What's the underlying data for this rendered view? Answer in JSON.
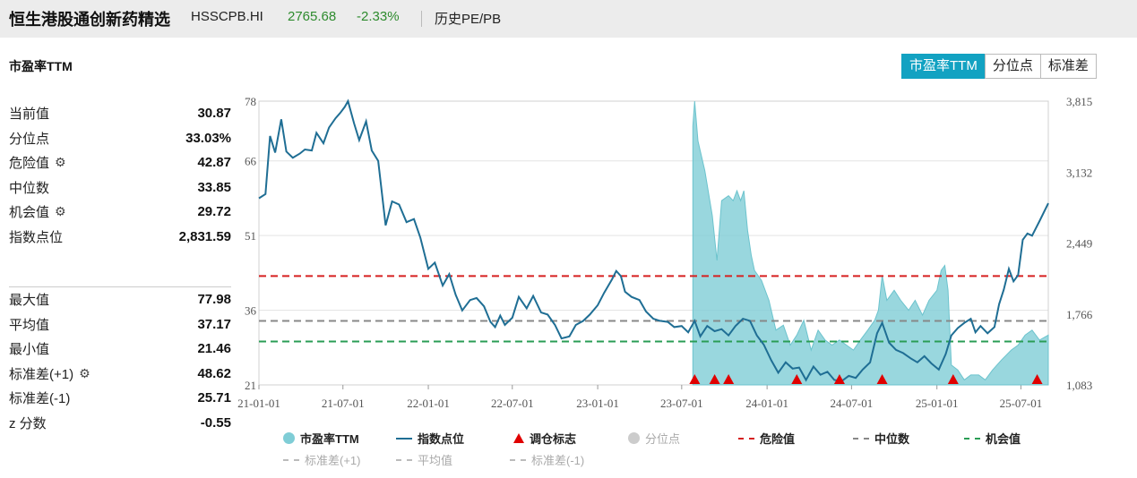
{
  "header": {
    "title": "恒生港股通创新药精选",
    "code": "HSSCPB.HI",
    "price": "2765.68",
    "change": "-2.33%",
    "history_link": "历史PE/PB"
  },
  "subtitle": "市盈率TTM",
  "tabs": [
    {
      "label": "市盈率TTM",
      "active": true
    },
    {
      "label": "分位点",
      "active": false
    },
    {
      "label": "标准差",
      "active": false
    }
  ],
  "stats_top": [
    {
      "label": "当前值",
      "value": "30.87",
      "gear": false
    },
    {
      "label": "分位点",
      "value": "33.03%",
      "gear": false
    },
    {
      "label": "危险值",
      "value": "42.87",
      "gear": true
    },
    {
      "label": "中位数",
      "value": "33.85",
      "gear": false
    },
    {
      "label": "机会值",
      "value": "29.72",
      "gear": true
    },
    {
      "label": "指数点位",
      "value": "2,831.59",
      "gear": false
    }
  ],
  "stats_bottom": [
    {
      "label": "最大值",
      "value": "77.98",
      "gear": false
    },
    {
      "label": "平均值",
      "value": "37.17",
      "gear": false
    },
    {
      "label": "最小值",
      "value": "21.46",
      "gear": false
    },
    {
      "label": "标准差(+1)",
      "value": "48.62",
      "gear": true
    },
    {
      "label": "标准差(-1)",
      "value": "25.71",
      "gear": false
    },
    {
      "label": "z 分数",
      "value": "-0.55",
      "gear": false
    }
  ],
  "legend": [
    {
      "label": "市盈率TTM",
      "kind": "dot",
      "color": "#7fcdd6",
      "active": true
    },
    {
      "label": "指数点位",
      "kind": "line",
      "color": "#1f6e94",
      "active": true
    },
    {
      "label": "调仓标志",
      "kind": "triangle",
      "color": "#e00000",
      "active": true
    },
    {
      "label": "分位点",
      "kind": "dot",
      "color": "#cccccc",
      "active": false
    },
    {
      "label": "危险值",
      "kind": "dash",
      "color": "#d62020",
      "active": true
    },
    {
      "label": "中位数",
      "kind": "dash",
      "color": "#888888",
      "active": true
    },
    {
      "label": "机会值",
      "kind": "dash",
      "color": "#2a9d55",
      "active": true
    },
    {
      "label": "标准差(+1)",
      "kind": "dash",
      "color": "#bbbbbb",
      "active": false
    },
    {
      "label": "平均值",
      "kind": "dash",
      "color": "#bbbbbb",
      "active": false
    },
    {
      "label": "标准差(-1)",
      "kind": "dash",
      "color": "#bbbbbb",
      "active": false
    }
  ],
  "chart_data": {
    "type": "line",
    "x_ticks": [
      "21-01-01",
      "21-07-01",
      "22-01-01",
      "22-07-01",
      "23-01-01",
      "23-07-01",
      "24-01-01",
      "24-07-01",
      "25-01-01",
      "25-07-01"
    ],
    "x_range": [
      "2021-01-01",
      "2025-08-29"
    ],
    "y_left_ticks": [
      "78",
      "66",
      "51",
      "36",
      "21"
    ],
    "y_left_range": [
      21,
      78
    ],
    "y_right_ticks": [
      "3,815",
      "3,132",
      "2,449",
      "1,766",
      "1,083"
    ],
    "y_right_range": [
      1083,
      3815
    ],
    "reference_lines": [
      {
        "name": "危险值",
        "value": 42.87,
        "color": "#d62020"
      },
      {
        "name": "中位数",
        "value": 33.85,
        "color": "#888888"
      },
      {
        "name": "机会值",
        "value": 29.72,
        "color": "#2a9d55"
      }
    ],
    "pe_ttm": {
      "color": "#7fcdd6",
      "points": [
        [
          "2023-07-25",
          73
        ],
        [
          "2023-07-29",
          78
        ],
        [
          "2023-08-05",
          70
        ],
        [
          "2023-08-20",
          64
        ],
        [
          "2023-09-05",
          55
        ],
        [
          "2023-09-15",
          46
        ],
        [
          "2023-09-25",
          58
        ],
        [
          "2023-10-10",
          59
        ],
        [
          "2023-10-20",
          58
        ],
        [
          "2023-10-28",
          60
        ],
        [
          "2023-11-05",
          58
        ],
        [
          "2023-11-12",
          60
        ],
        [
          "2023-11-20",
          52
        ],
        [
          "2023-11-28",
          47
        ],
        [
          "2023-12-05",
          44
        ],
        [
          "2023-12-20",
          42
        ],
        [
          "2024-01-05",
          38
        ],
        [
          "2024-01-20",
          32
        ],
        [
          "2024-02-05",
          33
        ],
        [
          "2024-02-20",
          29
        ],
        [
          "2024-03-05",
          31
        ],
        [
          "2024-03-20",
          34
        ],
        [
          "2024-04-05",
          28
        ],
        [
          "2024-04-20",
          32
        ],
        [
          "2024-05-05",
          30
        ],
        [
          "2024-05-20",
          29
        ],
        [
          "2024-06-05",
          30
        ],
        [
          "2024-06-20",
          29
        ],
        [
          "2024-07-05",
          28
        ],
        [
          "2024-07-20",
          30
        ],
        [
          "2024-08-05",
          32
        ],
        [
          "2024-08-20",
          34
        ],
        [
          "2024-08-28",
          36
        ],
        [
          "2024-09-05",
          43
        ],
        [
          "2024-09-15",
          38
        ],
        [
          "2024-10-01",
          40
        ],
        [
          "2024-10-15",
          38
        ],
        [
          "2024-11-01",
          36
        ],
        [
          "2024-11-15",
          38
        ],
        [
          "2024-12-01",
          35
        ],
        [
          "2024-12-15",
          38
        ],
        [
          "2025-01-01",
          40
        ],
        [
          "2025-01-10",
          44
        ],
        [
          "2025-01-18",
          45
        ],
        [
          "2025-01-25",
          40
        ],
        [
          "2025-02-01",
          25
        ],
        [
          "2025-02-15",
          24
        ],
        [
          "2025-03-01",
          22
        ],
        [
          "2025-03-15",
          23
        ],
        [
          "2025-04-01",
          23
        ],
        [
          "2025-04-15",
          22
        ],
        [
          "2025-05-01",
          24
        ],
        [
          "2025-05-20",
          26
        ],
        [
          "2025-06-10",
          28
        ],
        [
          "2025-06-25",
          29
        ],
        [
          "2025-07-10",
          31
        ],
        [
          "2025-07-25",
          32
        ],
        [
          "2025-08-10",
          30
        ],
        [
          "2025-08-29",
          31
        ]
      ]
    },
    "index_level": {
      "color": "#1f6e94",
      "points": [
        [
          "2021-01-01",
          2880
        ],
        [
          "2021-01-15",
          2920
        ],
        [
          "2021-01-25",
          3480
        ],
        [
          "2021-02-05",
          3320
        ],
        [
          "2021-02-18",
          3640
        ],
        [
          "2021-03-01",
          3330
        ],
        [
          "2021-03-15",
          3270
        ],
        [
          "2021-03-30",
          3310
        ],
        [
          "2021-04-10",
          3350
        ],
        [
          "2021-04-25",
          3340
        ],
        [
          "2021-05-05",
          3510
        ],
        [
          "2021-05-20",
          3410
        ],
        [
          "2021-06-01",
          3560
        ],
        [
          "2021-06-15",
          3650
        ],
        [
          "2021-06-25",
          3700
        ],
        [
          "2021-07-05",
          3760
        ],
        [
          "2021-07-12",
          3815
        ],
        [
          "2021-07-25",
          3600
        ],
        [
          "2021-08-05",
          3440
        ],
        [
          "2021-08-20",
          3620
        ],
        [
          "2021-09-01",
          3340
        ],
        [
          "2021-09-15",
          3240
        ],
        [
          "2021-10-01",
          2620
        ],
        [
          "2021-10-15",
          2850
        ],
        [
          "2021-10-30",
          2820
        ],
        [
          "2021-11-15",
          2650
        ],
        [
          "2021-12-01",
          2680
        ],
        [
          "2021-12-15",
          2500
        ],
        [
          "2022-01-01",
          2200
        ],
        [
          "2022-01-15",
          2260
        ],
        [
          "2022-02-01",
          2040
        ],
        [
          "2022-02-15",
          2150
        ],
        [
          "2022-03-01",
          1950
        ],
        [
          "2022-03-15",
          1800
        ],
        [
          "2022-04-01",
          1900
        ],
        [
          "2022-04-15",
          1920
        ],
        [
          "2022-05-01",
          1840
        ],
        [
          "2022-05-15",
          1690
        ],
        [
          "2022-05-25",
          1640
        ],
        [
          "2022-06-05",
          1750
        ],
        [
          "2022-06-15",
          1660
        ],
        [
          "2022-07-01",
          1730
        ],
        [
          "2022-07-15",
          1930
        ],
        [
          "2022-08-01",
          1820
        ],
        [
          "2022-08-15",
          1940
        ],
        [
          "2022-09-01",
          1780
        ],
        [
          "2022-09-15",
          1760
        ],
        [
          "2022-10-01",
          1660
        ],
        [
          "2022-10-15",
          1530
        ],
        [
          "2022-11-01",
          1550
        ],
        [
          "2022-11-15",
          1660
        ],
        [
          "2022-12-01",
          1700
        ],
        [
          "2022-12-15",
          1760
        ],
        [
          "2023-01-01",
          1850
        ],
        [
          "2023-01-15",
          1970
        ],
        [
          "2023-02-01",
          2100
        ],
        [
          "2023-02-10",
          2180
        ],
        [
          "2023-02-20",
          2130
        ],
        [
          "2023-03-01",
          1980
        ],
        [
          "2023-03-15",
          1930
        ],
        [
          "2023-04-01",
          1900
        ],
        [
          "2023-04-15",
          1790
        ],
        [
          "2023-05-01",
          1720
        ],
        [
          "2023-05-15",
          1700
        ],
        [
          "2023-06-01",
          1690
        ],
        [
          "2023-06-15",
          1640
        ],
        [
          "2023-07-01",
          1650
        ],
        [
          "2023-07-15",
          1590
        ],
        [
          "2023-07-29",
          1700
        ],
        [
          "2023-08-10",
          1550
        ],
        [
          "2023-08-25",
          1650
        ],
        [
          "2023-09-10",
          1600
        ],
        [
          "2023-09-25",
          1620
        ],
        [
          "2023-10-10",
          1560
        ],
        [
          "2023-10-25",
          1650
        ],
        [
          "2023-11-10",
          1720
        ],
        [
          "2023-11-25",
          1700
        ],
        [
          "2023-12-10",
          1560
        ],
        [
          "2023-12-25",
          1470
        ],
        [
          "2024-01-10",
          1320
        ],
        [
          "2024-01-25",
          1200
        ],
        [
          "2024-02-10",
          1300
        ],
        [
          "2024-02-25",
          1240
        ],
        [
          "2024-03-10",
          1250
        ],
        [
          "2024-03-25",
          1130
        ],
        [
          "2024-04-10",
          1260
        ],
        [
          "2024-04-25",
          1180
        ],
        [
          "2024-05-10",
          1210
        ],
        [
          "2024-05-25",
          1130
        ],
        [
          "2024-06-10",
          1120
        ],
        [
          "2024-06-25",
          1170
        ],
        [
          "2024-07-10",
          1150
        ],
        [
          "2024-07-25",
          1230
        ],
        [
          "2024-08-10",
          1300
        ],
        [
          "2024-08-25",
          1580
        ],
        [
          "2024-09-05",
          1680
        ],
        [
          "2024-09-20",
          1490
        ],
        [
          "2024-10-05",
          1420
        ],
        [
          "2024-10-20",
          1390
        ],
        [
          "2024-11-05",
          1340
        ],
        [
          "2024-11-20",
          1300
        ],
        [
          "2024-12-05",
          1360
        ],
        [
          "2024-12-20",
          1290
        ],
        [
          "2025-01-05",
          1230
        ],
        [
          "2025-01-20",
          1380
        ],
        [
          "2025-02-01",
          1560
        ],
        [
          "2025-02-15",
          1630
        ],
        [
          "2025-03-01",
          1680
        ],
        [
          "2025-03-15",
          1720
        ],
        [
          "2025-03-25",
          1590
        ],
        [
          "2025-04-05",
          1650
        ],
        [
          "2025-04-20",
          1580
        ],
        [
          "2025-05-05",
          1640
        ],
        [
          "2025-05-15",
          1860
        ],
        [
          "2025-05-25",
          2000
        ],
        [
          "2025-06-05",
          2200
        ],
        [
          "2025-06-15",
          2080
        ],
        [
          "2025-06-25",
          2140
        ],
        [
          "2025-07-05",
          2480
        ],
        [
          "2025-07-15",
          2540
        ],
        [
          "2025-07-25",
          2520
        ],
        [
          "2025-08-10",
          2660
        ],
        [
          "2025-08-29",
          2831.59
        ]
      ]
    },
    "rebalance_markers": [
      "2023-07-29",
      "2023-09-10",
      "2023-10-10",
      "2024-03-05",
      "2024-06-05",
      "2024-09-05",
      "2025-02-05",
      "2025-08-05"
    ]
  }
}
